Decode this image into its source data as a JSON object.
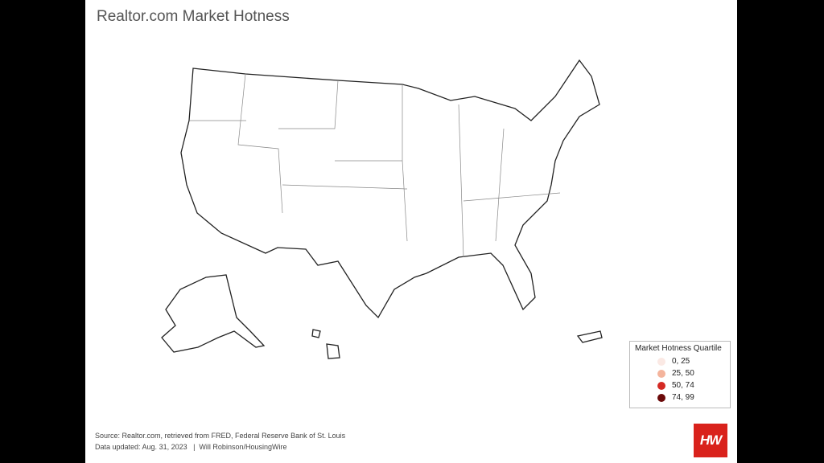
{
  "header": {
    "title": "Realtor.com Market Hotness"
  },
  "legend": {
    "title": "Market Hotness Quartile",
    "items": [
      {
        "label": "0, 25",
        "color": "#fbe9e4"
      },
      {
        "label": "25, 50",
        "color": "#f4b49c"
      },
      {
        "label": "50, 74",
        "color": "#d42a24"
      },
      {
        "label": "74, 99",
        "color": "#6b0a0a"
      }
    ]
  },
  "footer": {
    "source": "Source: Realtor.com, retrieved from FRED, Federal Reserve Bank of St. Louis",
    "updated": "Data updated: Aug. 31, 2023   |  Will Robinson/HousingWire"
  },
  "logo": "HW"
}
